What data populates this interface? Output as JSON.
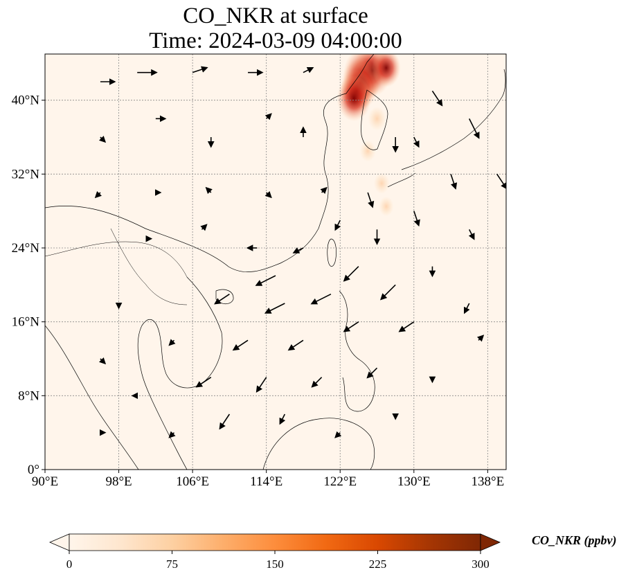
{
  "title": "CO_NKR at surface",
  "subtitle": "Time: 2024-03-09 04:00:00",
  "map": {
    "lon_range": [
      90,
      140
    ],
    "lat_range": [
      0,
      45
    ],
    "x_ticks": [
      {
        "lon": 90,
        "label": "90°E"
      },
      {
        "lon": 98,
        "label": "98°E"
      },
      {
        "lon": 106,
        "label": "106°E"
      },
      {
        "lon": 114,
        "label": "114°E"
      },
      {
        "lon": 122,
        "label": "122°E"
      },
      {
        "lon": 130,
        "label": "130°E"
      },
      {
        "lon": 138,
        "label": "138°E"
      }
    ],
    "y_ticks": [
      {
        "lat": 0,
        "label": "0°"
      },
      {
        "lat": 8,
        "label": "8°N"
      },
      {
        "lat": 16,
        "label": "16°N"
      },
      {
        "lat": 24,
        "label": "24°N"
      },
      {
        "lat": 32,
        "label": "32°N"
      },
      {
        "lat": 40,
        "label": "40°N"
      }
    ],
    "gridlines": true,
    "plume": [
      {
        "lon": 124.5,
        "lat": 42.8,
        "value": 300
      },
      {
        "lon": 125.5,
        "lat": 43.2,
        "value": 290
      },
      {
        "lon": 124.2,
        "lat": 41.8,
        "value": 280
      },
      {
        "lon": 123.8,
        "lat": 41.0,
        "value": 220
      },
      {
        "lon": 123.5,
        "lat": 40.2,
        "value": 240
      },
      {
        "lon": 127.0,
        "lat": 43.5,
        "value": 180
      },
      {
        "lon": 126.0,
        "lat": 38.0,
        "value": 60
      },
      {
        "lon": 125.0,
        "lat": 34.5,
        "value": 40
      },
      {
        "lon": 126.5,
        "lat": 31.0,
        "value": 35
      },
      {
        "lon": 127.0,
        "lat": 28.5,
        "value": 25
      }
    ],
    "wind_vectors": [
      {
        "lon": 96,
        "lat": 42,
        "u": 3,
        "v": 0
      },
      {
        "lon": 100,
        "lat": 43,
        "u": 4,
        "v": 0
      },
      {
        "lon": 106,
        "lat": 43,
        "u": 3,
        "v": 1
      },
      {
        "lon": 112,
        "lat": 43,
        "u": 3,
        "v": 0
      },
      {
        "lon": 118,
        "lat": 43,
        "u": 2,
        "v": 1
      },
      {
        "lon": 96,
        "lat": 36,
        "u": 1,
        "v": -1
      },
      {
        "lon": 102,
        "lat": 38,
        "u": 2,
        "v": 0
      },
      {
        "lon": 108,
        "lat": 36,
        "u": 0,
        "v": -2
      },
      {
        "lon": 114,
        "lat": 38,
        "u": 1,
        "v": 1
      },
      {
        "lon": 118,
        "lat": 36,
        "u": 0,
        "v": 2
      },
      {
        "lon": 96,
        "lat": 30,
        "u": -1,
        "v": -1
      },
      {
        "lon": 102,
        "lat": 30,
        "u": 1,
        "v": 0
      },
      {
        "lon": 108,
        "lat": 30,
        "u": -1,
        "v": 1
      },
      {
        "lon": 114,
        "lat": 30,
        "u": 1,
        "v": -1
      },
      {
        "lon": 120,
        "lat": 30,
        "u": 1,
        "v": 1
      },
      {
        "lon": 101,
        "lat": 25,
        "u": 1,
        "v": 0
      },
      {
        "lon": 107,
        "lat": 26,
        "u": 1,
        "v": 1
      },
      {
        "lon": 113,
        "lat": 24,
        "u": -2,
        "v": 0
      },
      {
        "lon": 118,
        "lat": 24,
        "u": -2,
        "v": -1
      },
      {
        "lon": 115,
        "lat": 21,
        "u": -4,
        "v": -2
      },
      {
        "lon": 110,
        "lat": 19,
        "u": -3,
        "v": -2
      },
      {
        "lon": 116,
        "lat": 18,
        "u": -4,
        "v": -2
      },
      {
        "lon": 121,
        "lat": 19,
        "u": -4,
        "v": -2
      },
      {
        "lon": 124,
        "lat": 22,
        "u": -3,
        "v": -3
      },
      {
        "lon": 128,
        "lat": 20,
        "u": -3,
        "v": -3
      },
      {
        "lon": 112,
        "lat": 14,
        "u": -3,
        "v": -2
      },
      {
        "lon": 118,
        "lat": 14,
        "u": -3,
        "v": -2
      },
      {
        "lon": 124,
        "lat": 16,
        "u": -3,
        "v": -2
      },
      {
        "lon": 130,
        "lat": 16,
        "u": -3,
        "v": -2
      },
      {
        "lon": 108,
        "lat": 10,
        "u": -3,
        "v": -2
      },
      {
        "lon": 114,
        "lat": 10,
        "u": -2,
        "v": -3
      },
      {
        "lon": 120,
        "lat": 10,
        "u": -2,
        "v": -2
      },
      {
        "lon": 126,
        "lat": 11,
        "u": -2,
        "v": -2
      },
      {
        "lon": 110,
        "lat": 6,
        "u": -2,
        "v": -3
      },
      {
        "lon": 116,
        "lat": 6,
        "u": -1,
        "v": -2
      },
      {
        "lon": 104,
        "lat": 14,
        "u": -1,
        "v": -1
      },
      {
        "lon": 98,
        "lat": 18,
        "u": 0,
        "v": -1
      },
      {
        "lon": 96,
        "lat": 12,
        "u": 1,
        "v": -1
      },
      {
        "lon": 100,
        "lat": 8,
        "u": -1,
        "v": 0
      },
      {
        "lon": 104,
        "lat": 4,
        "u": -1,
        "v": -1
      },
      {
        "lon": 96,
        "lat": 4,
        "u": 1,
        "v": 0
      },
      {
        "lon": 132,
        "lat": 41,
        "u": 2,
        "v": -3
      },
      {
        "lon": 136,
        "lat": 38,
        "u": 2,
        "v": -4
      },
      {
        "lon": 139,
        "lat": 32,
        "u": 2,
        "v": -3
      },
      {
        "lon": 134,
        "lat": 32,
        "u": 1,
        "v": -3
      },
      {
        "lon": 130,
        "lat": 28,
        "u": 1,
        "v": -3
      },
      {
        "lon": 136,
        "lat": 26,
        "u": 1,
        "v": -2
      },
      {
        "lon": 132,
        "lat": 22,
        "u": 0,
        "v": -2
      },
      {
        "lon": 136,
        "lat": 18,
        "u": -1,
        "v": -2
      },
      {
        "lon": 128,
        "lat": 36,
        "u": 0,
        "v": -3
      },
      {
        "lon": 125,
        "lat": 30,
        "u": 1,
        "v": -3
      },
      {
        "lon": 126,
        "lat": 26,
        "u": 0,
        "v": -3
      },
      {
        "lon": 130,
        "lat": 36,
        "u": 1,
        "v": -2
      },
      {
        "lon": 122,
        "lat": 27,
        "u": -1,
        "v": -2
      },
      {
        "lon": 137,
        "lat": 14,
        "u": 1,
        "v": 1
      },
      {
        "lon": 132,
        "lat": 10,
        "u": 0,
        "v": -1
      },
      {
        "lon": 122,
        "lat": 4,
        "u": -1,
        "v": -1
      },
      {
        "lon": 128,
        "lat": 6,
        "u": 0,
        "v": -1
      }
    ]
  },
  "colorbar": {
    "label": "CO_NKR (ppbv)",
    "min": 0,
    "max": 300,
    "ticks": [
      "0",
      "75",
      "150",
      "225",
      "300"
    ],
    "colormap": [
      "#fff5eb",
      "#fee6ce",
      "#fdd0a2",
      "#fdae6b",
      "#fd8d3c",
      "#f16913",
      "#d94801",
      "#a63603",
      "#7f2704"
    ],
    "extend": "both"
  }
}
